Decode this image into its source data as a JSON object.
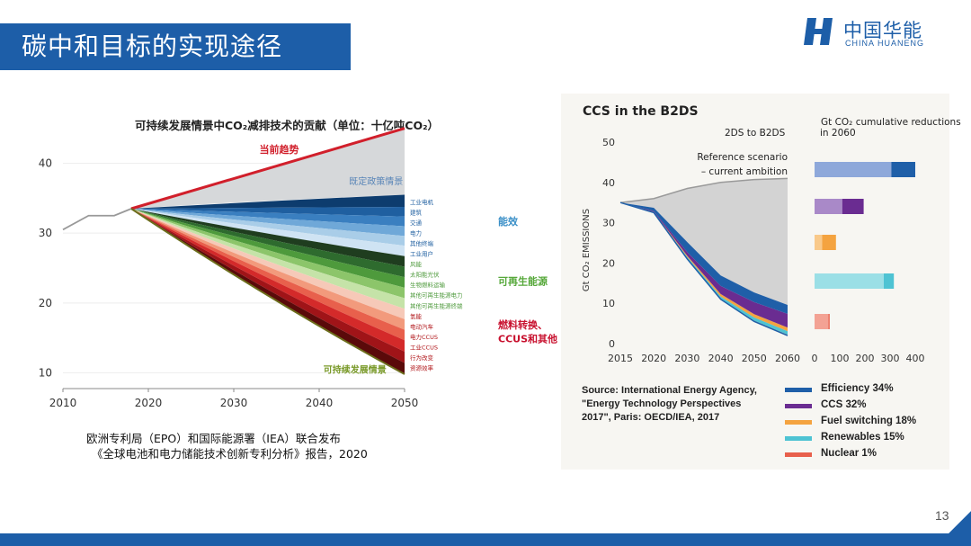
{
  "slide": {
    "title": "碳中和目标的实现途径",
    "page_number": "13",
    "brand_color": "#1d5ea8"
  },
  "logo": {
    "name_cn": "中国华能",
    "name_en": "CHINA HUANENG"
  },
  "left_chart": {
    "source_line1": "欧洲专利局（EPO）和国际能源署（IEA）联合发布",
    "source_line2": "《全球电池和电力储能技术创新专利分析》报告，2020"
  },
  "right_chart": {
    "source_lines": [
      "Source: International Energy Agency,",
      "\"Energy Technology Perspectives",
      "2017\", Paris: OECD/IEA, 2017"
    ],
    "legend": [
      {
        "label": "Efficiency 34%",
        "color": "#1f5fa8"
      },
      {
        "label": "CCS 32%",
        "color": "#6a2c91"
      },
      {
        "label": "Fuel switching 18%",
        "color": "#f4a340"
      },
      {
        "label": "Renewables 15%",
        "color": "#4ec3d3"
      },
      {
        "label": "Nuclear 1%",
        "color": "#e8604c"
      }
    ]
  },
  "chart_data": [
    {
      "type": "area",
      "title": "可持续发展情景中CO₂减排技术的贡献（单位：十亿吨CO₂）",
      "x_ticks": [
        "2010",
        "2020",
        "2030",
        "2040",
        "2050"
      ],
      "y_ticks": [
        "10",
        "20",
        "30",
        "40"
      ],
      "xlim": [
        2010,
        2050
      ],
      "ylim": [
        8,
        42
      ],
      "history": {
        "x": [
          2010,
          2013,
          2016,
          2017,
          2018
        ],
        "y": [
          30.5,
          32.5,
          32.5,
          33,
          33.5
        ]
      },
      "scenarios": [
        {
          "name": "当前趋势",
          "x": [
            2018,
            2050
          ],
          "y": [
            33.5,
            45
          ]
        },
        {
          "name": "既定政策情景",
          "x": [
            2018,
            2050
          ],
          "y": [
            33.5,
            35.5
          ]
        },
        {
          "name": "可持续发展情景",
          "x": [
            2018,
            2050
          ],
          "y": [
            33.5,
            9.8
          ]
        }
      ],
      "group_labels": [
        {
          "label": "能效",
          "color": "#3a8fc7"
        },
        {
          "label": "可再生能源",
          "color": "#56a83a"
        },
        {
          "label": "燃料转换、CCUS和其他",
          "color": "#c8102e"
        }
      ],
      "wedge_labels": [
        "工业电机",
        "建筑",
        "交通",
        "电力",
        "其他终端",
        "工业用户",
        "风能",
        "太阳能光伏",
        "生物燃料运输",
        "其他可再生能源电力",
        "其他可再生能源终端",
        "氢能",
        "电动汽车",
        "电力CCUS",
        "工业CCUS",
        "行为改变",
        "资源效率"
      ],
      "wedges_2050": [
        {
          "name": "工业电机",
          "color": "#0d3c6e",
          "value": 1.5
        },
        {
          "name": "建筑",
          "color": "#1f5fa0",
          "value": 1.2
        },
        {
          "name": "交通",
          "color": "#3a7fc0",
          "value": 1.2
        },
        {
          "name": "电力",
          "color": "#6fa8d8",
          "value": 1.2
        },
        {
          "name": "其他终端",
          "color": "#a9cde8",
          "value": 1.2
        },
        {
          "name": "工业用户",
          "color": "#cfe3f3",
          "value": 1.3
        },
        {
          "name": "风能",
          "color": "#1f3d1f",
          "value": 1.3
        },
        {
          "name": "太阳能光伏",
          "color": "#2e6b2e",
          "value": 1.3
        },
        {
          "name": "生物燃料运输",
          "color": "#4e9a3c",
          "value": 1.3
        },
        {
          "name": "其他可再生能源电力",
          "color": "#8cc56a",
          "value": 1.3
        },
        {
          "name": "其他可再生能源终端",
          "color": "#c5e3a8",
          "value": 1.3
        },
        {
          "name": "氢能",
          "color": "#f6c9b8",
          "value": 1.3
        },
        {
          "name": "电动汽车",
          "color": "#f29a7c",
          "value": 1.3
        },
        {
          "name": "电力CCUS",
          "color": "#e8604c",
          "value": 1.3
        },
        {
          "name": "工业CCUS",
          "color": "#d42a2a",
          "value": 1.4
        },
        {
          "name": "行为改变",
          "color": "#a01418",
          "value": 1.4
        },
        {
          "name": "资源效率",
          "color": "#5a0a0a",
          "value": 1.4
        }
      ]
    },
    {
      "type": "area",
      "title": "CCS in the B2DS",
      "ylabel": "Gt CO₂ EMISSIONS",
      "sublabel": "2DS to B2DS",
      "annotations": [
        "Reference scenario",
        "– current ambition"
      ],
      "x": [
        2015,
        2020,
        2030,
        2040,
        2050,
        2060
      ],
      "x_ticks": [
        "2015",
        "2020",
        "2030",
        "2040",
        "2050",
        "2060"
      ],
      "y_ticks": [
        "0",
        "10",
        "20",
        "30",
        "40",
        "50"
      ],
      "ylim": [
        0,
        50
      ],
      "reference": [
        35,
        36,
        38.5,
        40,
        40.7,
        41
      ],
      "b2ds": [
        35,
        32.5,
        21,
        11,
        5.5,
        2
      ],
      "wedges": [
        {
          "name": "Efficiency",
          "values": [
            0,
            0.8,
            2.5,
            2.6,
            2.4,
            2.2
          ]
        },
        {
          "name": "CCS",
          "values": [
            0,
            0.2,
            0.9,
            2.0,
            3.0,
            3.4
          ]
        },
        {
          "name": "Fuel switching",
          "values": [
            0,
            0.1,
            0.3,
            0.6,
            0.8,
            0.9
          ]
        },
        {
          "name": "Renewables",
          "values": [
            0,
            0.1,
            0.4,
            0.6,
            0.8,
            0.9
          ]
        },
        {
          "name": "Nuclear",
          "values": [
            0,
            0,
            0.1,
            0.1,
            0.2,
            0.2
          ]
        }
      ]
    },
    {
      "type": "bar",
      "title": "Gt CO₂ cumulative reductions in 2060",
      "x_ticks": [
        "0",
        "100",
        "200",
        "300",
        "400"
      ],
      "xlim": [
        0,
        400
      ],
      "categories": [
        "Efficiency",
        "CCS",
        "Fuel switching",
        "Renewables",
        "Nuclear"
      ],
      "series": [
        {
          "name": "2DS",
          "values": [
            305,
            110,
            30,
            275,
            55
          ]
        },
        {
          "name": "2DS to B2DS",
          "values": [
            95,
            85,
            55,
            40,
            5
          ]
        }
      ],
      "colors_2ds": [
        "#8ea8da",
        "#a989c8",
        "#f9c98a",
        "#9bdfe6",
        "#f3a294"
      ],
      "colors_b2ds": [
        "#1f5fa8",
        "#6a2c91",
        "#f4a340",
        "#4ec3d3",
        "#e8604c"
      ]
    }
  ]
}
